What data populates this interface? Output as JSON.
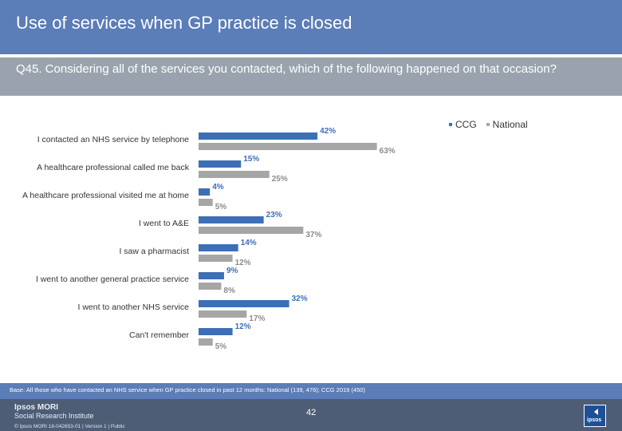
{
  "header": {
    "title": "Use of services when GP practice is closed",
    "question": "Q45. Considering all of the services you contacted, which of the following happened on that occasion?"
  },
  "legend": {
    "items": [
      {
        "label": "CCG",
        "color": "#3d6fb6"
      },
      {
        "label": "National",
        "color": "#a6a6a6"
      }
    ]
  },
  "chart_data": {
    "type": "bar",
    "orientation": "horizontal",
    "categories": [
      "I contacted an NHS service by telephone",
      "A healthcare professional called me back",
      "A healthcare professional visited me at home",
      "I went to A&E",
      "I saw a pharmacist",
      "I went to another general practice service",
      "I went to another NHS service",
      "Can't remember"
    ],
    "series": [
      {
        "name": "CCG",
        "color": "#3d6fb6",
        "values": [
          42,
          15,
          4,
          23,
          14,
          9,
          32,
          12
        ],
        "labels": [
          "42%",
          "15%",
          "4%",
          "23%",
          "14%",
          "9%",
          "32%",
          "12%"
        ]
      },
      {
        "name": "National",
        "color": "#a6a6a6",
        "values": [
          63,
          25,
          5,
          37,
          12,
          8,
          17,
          5
        ],
        "labels": [
          "63%",
          "25%",
          "5%",
          "37%",
          "12%",
          "8%",
          "17%",
          "5%"
        ]
      }
    ],
    "xlim": [
      0,
      100
    ],
    "value_suffix": "%"
  },
  "footer": {
    "base": "Base: All those who have contacted an NHS service when GP practice closed in past 12 months: National (139, 476); CCG 2019 (450)",
    "brand_name": "Ipsos MORI",
    "brand_sub": "Social Research Institute",
    "copyright": "© Ipsos MORI     18-042653-01 | Version 1 | Public",
    "page_number": "42",
    "logo_text": "ipsos"
  }
}
